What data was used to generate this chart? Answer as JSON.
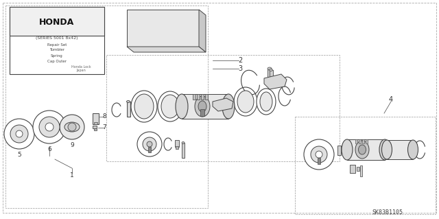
{
  "bg_color": "#ffffff",
  "line_color": "#444444",
  "text_color": "#333333",
  "part_number": "SK83B1105",
  "honda_label": "HONDA",
  "series_text": "(SERIES 5001 8x42)",
  "repair_lines": [
    "Repair Set",
    "Tumbler",
    "Spring",
    "Cap Outer"
  ],
  "honda_lock": "Honda Lock\nJapan",
  "gray_fill": "#d0d0d0",
  "mid_gray": "#b0b0b0",
  "dark_gray": "#888888",
  "white": "#ffffff",
  "light_gray": "#e8e8e8"
}
